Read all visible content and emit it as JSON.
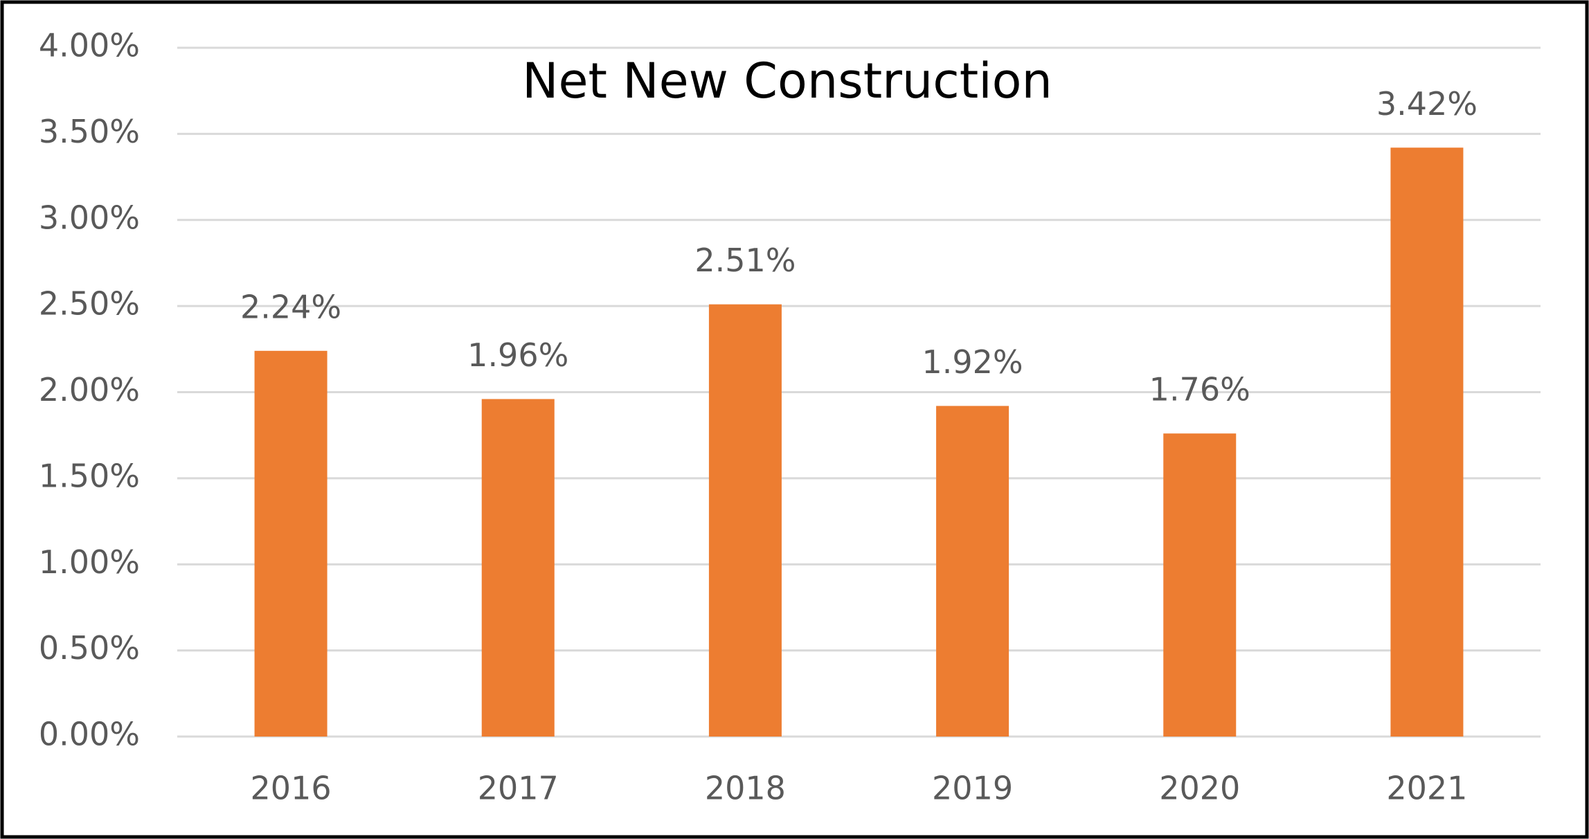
{
  "chart_data": {
    "type": "bar",
    "title": "Net New Construction",
    "categories": [
      "2016",
      "2017",
      "2018",
      "2019",
      "2020",
      "2021"
    ],
    "values": [
      2.24,
      1.96,
      2.51,
      1.92,
      1.76,
      3.42
    ],
    "value_labels": [
      "2.24%",
      "1.96%",
      "2.51%",
      "1.92%",
      "1.76%",
      "3.42%"
    ],
    "color": "#ed7d31",
    "ylim": [
      0,
      4
    ],
    "yticks": [
      {
        "value": 0,
        "label": "0.00%"
      },
      {
        "value": 0.5,
        "label": "0.50%"
      },
      {
        "value": 1,
        "label": "1.00%"
      },
      {
        "value": 1.5,
        "label": "1.50%"
      },
      {
        "value": 2,
        "label": "2.00%"
      },
      {
        "value": 2.5,
        "label": "2.50%"
      },
      {
        "value": 3,
        "label": "3.00%"
      },
      {
        "value": 3.5,
        "label": "3.50%"
      },
      {
        "value": 4,
        "label": "4.00%"
      }
    ],
    "grid": true
  }
}
